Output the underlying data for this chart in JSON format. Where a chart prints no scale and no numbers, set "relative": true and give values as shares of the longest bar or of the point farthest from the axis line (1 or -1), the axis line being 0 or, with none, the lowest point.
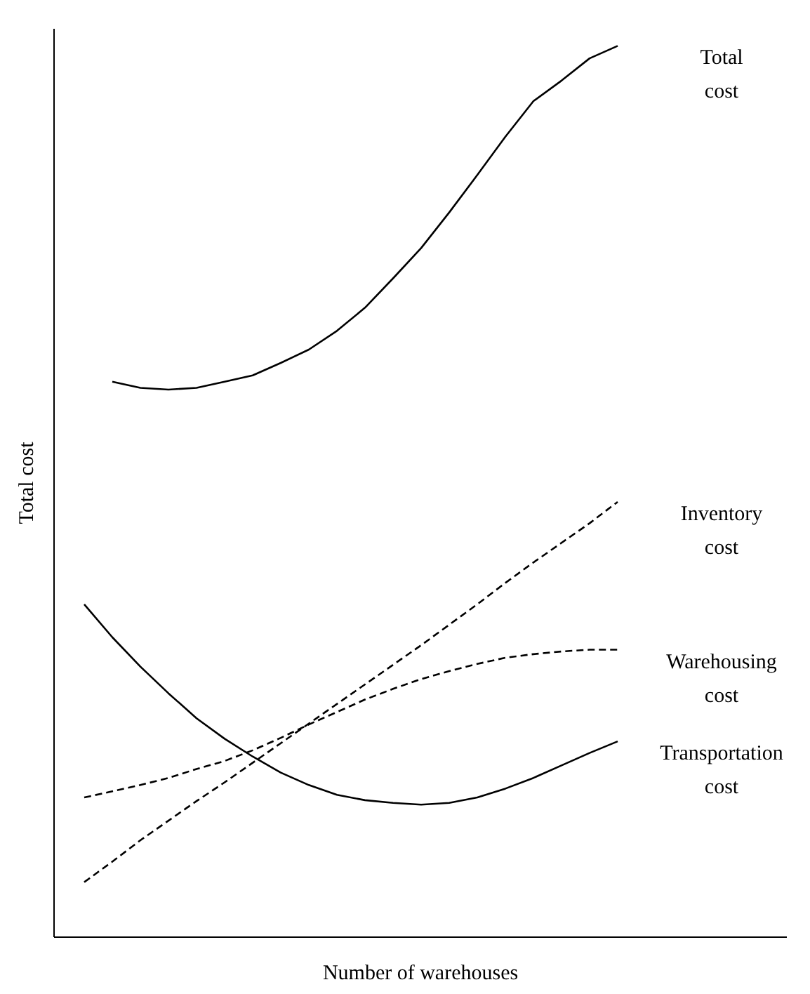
{
  "chart_data": {
    "type": "line",
    "relative": true,
    "xlabel": "Number of warehouses",
    "ylabel": "Total cost",
    "categories": [
      null,
      null,
      null,
      null,
      null,
      null,
      null,
      null,
      null,
      null,
      null,
      null,
      null,
      null,
      null,
      null,
      null,
      null,
      null,
      null
    ],
    "series": [
      {
        "name": "Total cost",
        "color": "#000000",
        "line_style": "solid",
        "values": [
          null,
          0.623,
          0.616,
          0.614,
          0.616,
          0.623,
          0.63,
          0.644,
          0.659,
          0.68,
          0.706,
          0.739,
          0.773,
          0.813,
          0.855,
          0.898,
          0.938,
          0.961,
          0.986,
          1
        ]
      },
      {
        "name": "Inventory cost",
        "color": "#000000",
        "line_style": "dashed",
        "values": [
          0.061,
          0.084,
          0.108,
          0.13,
          0.152,
          0.173,
          0.195,
          0.217,
          0.239,
          0.261,
          0.283,
          0.305,
          0.327,
          0.35,
          0.373,
          0.397,
          0.42,
          0.442,
          0.464,
          0.488
        ]
      },
      {
        "name": "Warehousing cost",
        "color": "#000000",
        "line_style": "dashed",
        "values": [
          0.156,
          0.163,
          0.17,
          0.178,
          0.188,
          0.197,
          0.209,
          0.223,
          0.238,
          0.252,
          0.266,
          0.278,
          0.289,
          0.298,
          0.306,
          0.313,
          0.317,
          0.32,
          0.322,
          0.322
        ]
      },
      {
        "name": "Transportation cost",
        "color": "#000000",
        "line_style": "solid",
        "values": [
          0.373,
          0.336,
          0.303,
          0.273,
          0.245,
          0.222,
          0.202,
          0.184,
          0.17,
          0.159,
          0.153,
          0.15,
          0.148,
          0.15,
          0.156,
          0.166,
          0.178,
          0.192,
          0.206,
          0.219
        ]
      }
    ]
  }
}
